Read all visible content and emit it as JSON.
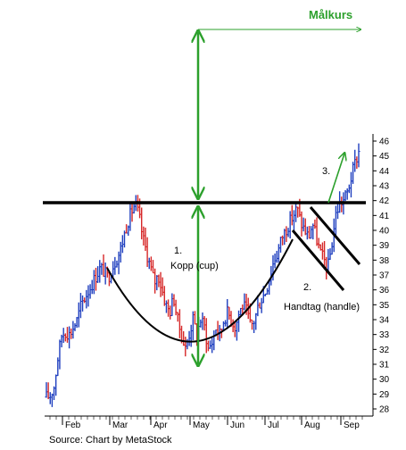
{
  "chart_data": {
    "type": "ohlc",
    "title": "",
    "source": "Source: Chart by MetaStock",
    "xlabel": "",
    "ylabel": "",
    "ylim": [
      27.5,
      46.5
    ],
    "y_ticks": [
      28,
      29,
      30,
      31,
      32,
      33,
      34,
      35,
      36,
      37,
      38,
      39,
      40,
      41,
      42,
      43,
      44,
      45,
      46
    ],
    "x_ticks": [
      "Feb",
      "Mar",
      "Apr",
      "May",
      "Jun",
      "Jul",
      "Aug",
      "Sep"
    ],
    "grid": false,
    "y_axis_side": "right",
    "resistance_level": 41.9,
    "target_label": "Målkurs",
    "annotations": [
      {
        "number": "1.",
        "text": "Kopp (cup)"
      },
      {
        "number": "2.",
        "text": "Handtag (handle)"
      },
      {
        "number": "3.",
        "text": ""
      }
    ],
    "price_path": [
      [
        0,
        28.8
      ],
      [
        1,
        28.9
      ],
      [
        2,
        29.5
      ],
      [
        3,
        31.5
      ],
      [
        4,
        33.0
      ],
      [
        5,
        33.2
      ],
      [
        6,
        33.0
      ],
      [
        7,
        33.5
      ],
      [
        8,
        34.0
      ],
      [
        9,
        35.0
      ],
      [
        10,
        35.5
      ],
      [
        11,
        36.0
      ],
      [
        12,
        36.5
      ],
      [
        13,
        37.0
      ],
      [
        14,
        37.5
      ],
      [
        15,
        37.2
      ],
      [
        16,
        36.8
      ],
      [
        17,
        37.5
      ],
      [
        18,
        38.0
      ],
      [
        19,
        38.5
      ],
      [
        20,
        39.5
      ],
      [
        21,
        40.5
      ],
      [
        22,
        41.2
      ],
      [
        23,
        41.8
      ],
      [
        24,
        41.0
      ],
      [
        25,
        39.5
      ],
      [
        26,
        38.5
      ],
      [
        27,
        37.5
      ],
      [
        28,
        36.5
      ],
      [
        29,
        37.0
      ],
      [
        30,
        36.0
      ],
      [
        31,
        35.0
      ],
      [
        32,
        34.5
      ],
      [
        33,
        35.5
      ],
      [
        34,
        34.0
      ],
      [
        35,
        33.0
      ],
      [
        36,
        32.0
      ],
      [
        37,
        33.0
      ],
      [
        38,
        34.0
      ],
      [
        39,
        33.0
      ],
      [
        40,
        34.0
      ],
      [
        41,
        33.5
      ],
      [
        42,
        32.0
      ],
      [
        43,
        32.5
      ],
      [
        44,
        33.5
      ],
      [
        45,
        33.0
      ],
      [
        46,
        34.0
      ],
      [
        47,
        34.5
      ],
      [
        48,
        34.0
      ],
      [
        49,
        33.5
      ],
      [
        50,
        34.5
      ],
      [
        51,
        35.0
      ],
      [
        52,
        34.5
      ],
      [
        53,
        33.5
      ],
      [
        54,
        34.0
      ],
      [
        55,
        35.0
      ],
      [
        56,
        35.5
      ],
      [
        57,
        36.0
      ],
      [
        58,
        37.0
      ],
      [
        59,
        38.0
      ],
      [
        60,
        38.5
      ],
      [
        61,
        39.5
      ],
      [
        62,
        40.0
      ],
      [
        63,
        40.5
      ],
      [
        64,
        41.0
      ],
      [
        65,
        41.5
      ],
      [
        66,
        40.5
      ],
      [
        67,
        40.0
      ],
      [
        68,
        39.5
      ],
      [
        69,
        40.5
      ],
      [
        70,
        39.5
      ],
      [
        71,
        38.5
      ],
      [
        72,
        38.0
      ],
      [
        73,
        37.5
      ],
      [
        74,
        39.0
      ],
      [
        75,
        41.0
      ],
      [
        76,
        41.8
      ],
      [
        77,
        42.0
      ],
      [
        78,
        42.5
      ],
      [
        79,
        43.5
      ],
      [
        80,
        44.5
      ],
      [
        81,
        45.3
      ]
    ]
  }
}
